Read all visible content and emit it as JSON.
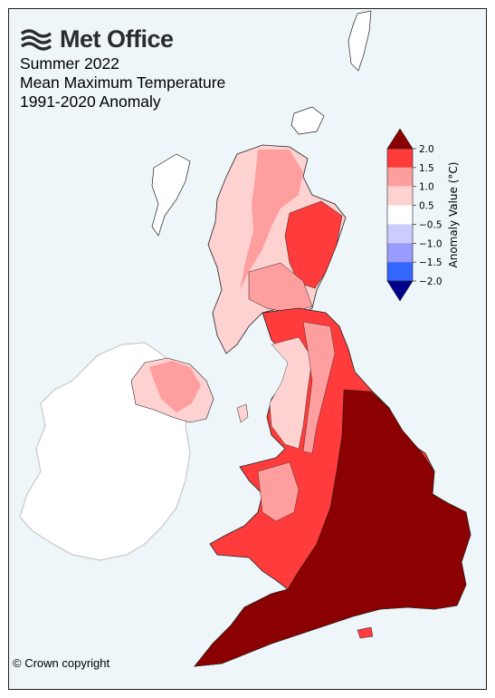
{
  "logo": {
    "text": "Met Office",
    "icon": "met-office-wave-icon"
  },
  "titles": {
    "line1": "Summer 2022",
    "line2": "Mean Maximum Temperature",
    "line3": "1991-2020 Anomaly"
  },
  "colorbar": {
    "label": "Anomaly Value (°C)",
    "ticks": [
      "2.0",
      "1.5",
      "1.0",
      "0.5",
      "−0.5",
      "−1.0",
      "−1.5",
      "−2.0"
    ],
    "colors": [
      "#8b0000",
      "#ff3b3b",
      "#ff9e9e",
      "#ffd2d2",
      "#ffffff",
      "#ccccff",
      "#9a9aff",
      "#3366ff",
      "#00008b"
    ]
  },
  "legend_colors": {
    "ireland": "#ffffff",
    "sea": "#eef6fa"
  },
  "copyright": "© Crown copyright"
}
